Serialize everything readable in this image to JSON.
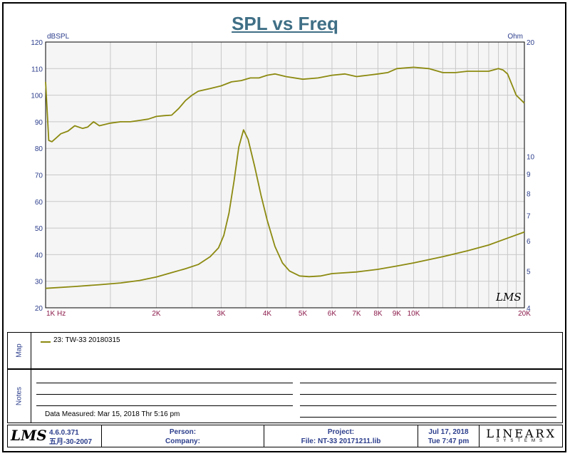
{
  "chart_data": {
    "type": "line",
    "title": "SPL vs Freq",
    "xscale": "log",
    "xlim": [
      1000,
      20000
    ],
    "x_ticks": [
      {
        "value": 1000,
        "label": "1K  Hz"
      },
      {
        "value": 2000,
        "label": "2K"
      },
      {
        "value": 3000,
        "label": "3K"
      },
      {
        "value": 4000,
        "label": "4K"
      },
      {
        "value": 5000,
        "label": "5K"
      },
      {
        "value": 6000,
        "label": "6K"
      },
      {
        "value": 7000,
        "label": "7K"
      },
      {
        "value": 8000,
        "label": "8K"
      },
      {
        "value": 9000,
        "label": "9K"
      },
      {
        "value": 10000,
        "label": "10K"
      },
      {
        "value": 20000,
        "label": "20K"
      }
    ],
    "y_left": {
      "unit": "dBSPL",
      "lim": [
        20,
        120
      ],
      "ticks": [
        20,
        30,
        40,
        50,
        60,
        70,
        80,
        90,
        100,
        110,
        120
      ]
    },
    "y_right": {
      "unit": "Ohm",
      "scale": "log",
      "lim": [
        4,
        20
      ],
      "ticks": [
        4,
        5,
        6,
        7,
        8,
        9,
        10,
        20
      ]
    },
    "grid": true,
    "series": [
      {
        "name": "23: TW-33 20180315",
        "axis": "left",
        "color": "#8c8a10",
        "x": [
          1000,
          1020,
          1040,
          1070,
          1100,
          1150,
          1200,
          1260,
          1300,
          1350,
          1400,
          1450,
          1500,
          1600,
          1700,
          1800,
          1900,
          2000,
          2100,
          2200,
          2300,
          2400,
          2500,
          2600,
          2800,
          3000,
          3200,
          3400,
          3600,
          3800,
          4000,
          4200,
          4500,
          5000,
          5500,
          6000,
          6500,
          7000,
          7500,
          8000,
          8500,
          9000,
          10000,
          11000,
          12000,
          13000,
          14000,
          15000,
          16000,
          17000,
          17500,
          18000,
          19000,
          20000
        ],
        "y": [
          105,
          83,
          82.5,
          84,
          85.5,
          86.5,
          88.5,
          87.5,
          88,
          90,
          88.5,
          89,
          89.5,
          90,
          90,
          90.5,
          91,
          92,
          92.3,
          92.5,
          95,
          98,
          100,
          101.5,
          102.5,
          103.5,
          105,
          105.5,
          106.5,
          106.5,
          107.5,
          108,
          107,
          106,
          106.5,
          107.5,
          108,
          107,
          107.5,
          108,
          108.5,
          110,
          110.5,
          110,
          108.5,
          108.5,
          109,
          109,
          109,
          110,
          109.5,
          108,
          100,
          97
        ]
      },
      {
        "name": "",
        "axis": "right",
        "color": "#8c8a10",
        "x": [
          1000,
          1200,
          1400,
          1600,
          1800,
          2000,
          2200,
          2400,
          2600,
          2800,
          2950,
          3050,
          3150,
          3250,
          3350,
          3450,
          3550,
          3700,
          3850,
          4000,
          4200,
          4400,
          4600,
          4900,
          5200,
          5600,
          6000,
          7000,
          8000,
          9000,
          10000,
          12000,
          14000,
          16000,
          18000,
          20000
        ],
        "y": [
          4.5,
          4.55,
          4.6,
          4.65,
          4.72,
          4.82,
          4.95,
          5.07,
          5.2,
          5.45,
          5.75,
          6.2,
          7.1,
          8.6,
          10.6,
          11.75,
          11.1,
          9.4,
          7.9,
          6.8,
          5.8,
          5.25,
          5.0,
          4.85,
          4.83,
          4.85,
          4.92,
          4.97,
          5.05,
          5.15,
          5.25,
          5.45,
          5.65,
          5.85,
          6.1,
          6.33
        ]
      }
    ]
  },
  "watermark": "LMS",
  "map": {
    "label": "Map",
    "legend_entry": "23: TW-33 20180315"
  },
  "notes": {
    "label": "Notes",
    "measured": "Data Measured: Mar 15, 2018  Thr  5:16 pm"
  },
  "footer": {
    "logo": "LMS",
    "version": "4.6.0.371",
    "build": "五月-30-2007",
    "person": "Person:",
    "company": "Company:",
    "project": "Project:",
    "file": "File: NT-33 20171211.lib",
    "date": "Jul 17, 2018",
    "time": "Tue  7:47 pm",
    "brand_main": "LINEARX",
    "brand_sub": "SYSTEMS"
  }
}
